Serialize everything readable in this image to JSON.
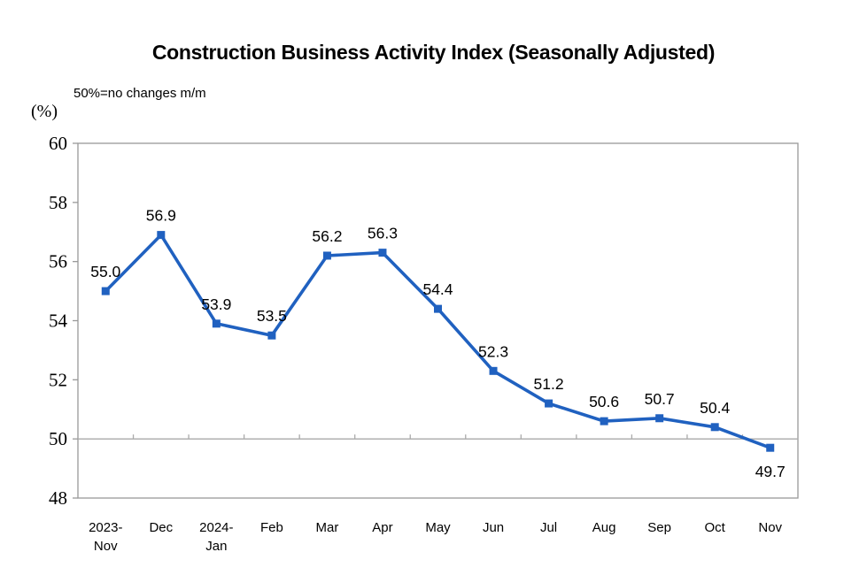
{
  "header": {
    "title": "Construction Business Activity Index (Seasonally Adjusted)",
    "note": "50%=no changes m/m",
    "unit_label": "(%)"
  },
  "chart_data": {
    "type": "line",
    "title": "Construction Business Activity Index (Seasonally Adjusted)",
    "subtitle": "50%=no changes m/m",
    "ylabel": "(%)",
    "xlabel": "",
    "categories": [
      "2023-\nNov",
      "Dec",
      "2024-\nJan",
      "Feb",
      "Mar",
      "Apr",
      "May",
      "Jun",
      "Jul",
      "Aug",
      "Sep",
      "Oct",
      "Nov"
    ],
    "values": [
      55.0,
      56.9,
      53.9,
      53.5,
      56.2,
      56.3,
      54.4,
      52.3,
      51.2,
      50.6,
      50.7,
      50.4,
      49.7
    ],
    "data_labels": [
      "55.0",
      "56.9",
      "53.9",
      "53.5",
      "56.2",
      "56.3",
      "54.4",
      "52.3",
      "51.2",
      "50.6",
      "50.7",
      "50.4",
      "49.7"
    ],
    "label_below_indices": [
      12
    ],
    "ylim": [
      48,
      60
    ],
    "yticks": [
      48,
      50,
      52,
      54,
      56,
      58,
      60
    ],
    "reference_line": 50,
    "grid": false,
    "legend_position": "none",
    "line_color": "#2061c0",
    "marker": "square",
    "marker_color": "#2061c0",
    "axis_color": "#999999",
    "reference_line_color": "#aaaaaa",
    "text_color": "#000000"
  }
}
